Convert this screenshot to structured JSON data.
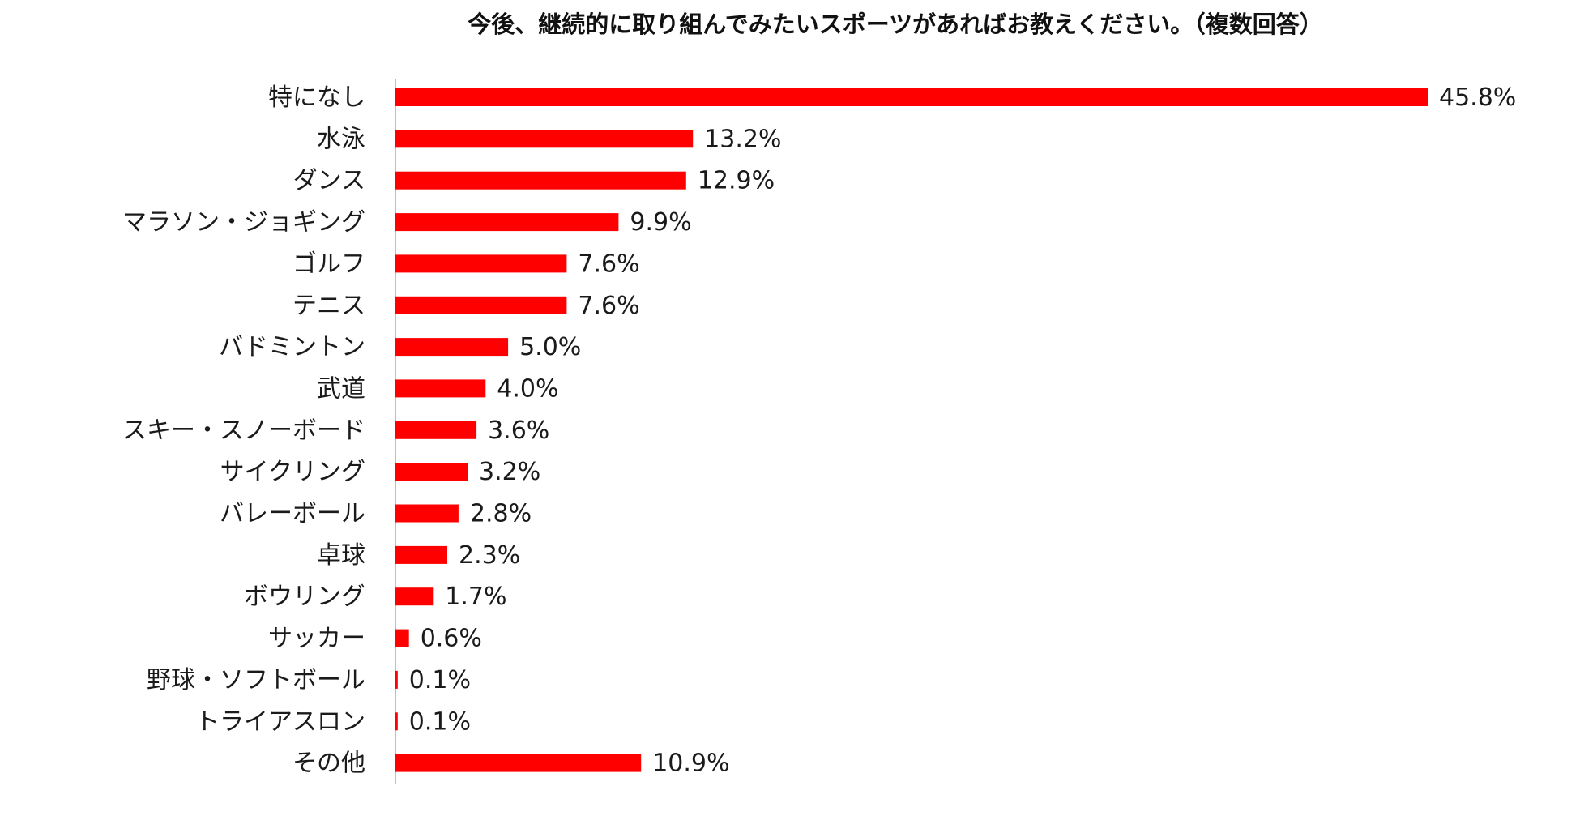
{
  "chart_data": {
    "type": "bar",
    "orientation": "horizontal",
    "title": "今後、継続的に取り組んでみたいスポーツがあればお教えください。（複数回答）",
    "categories": [
      "特になし",
      "水泳",
      "ダンス",
      "マラソン・ジョギング",
      "ゴルフ",
      "テニス",
      "バドミントン",
      "武道",
      "スキー・スノーボード",
      "サイクリング",
      "バレーボール",
      "卓球",
      "ボウリング",
      "サッカー",
      "野球・ソフトボール",
      "トライアスロン",
      "その他"
    ],
    "values": [
      45.8,
      13.2,
      12.9,
      9.9,
      7.6,
      7.6,
      5.0,
      4.0,
      3.6,
      3.2,
      2.8,
      2.3,
      1.7,
      0.6,
      0.1,
      0.1,
      10.9
    ],
    "value_labels": [
      "45.8%",
      "13.2%",
      "12.9%",
      "9.9%",
      "7.6%",
      "7.6%",
      "5.0%",
      "4.0%",
      "3.6%",
      "3.2%",
      "2.8%",
      "2.3%",
      "1.7%",
      "0.6%",
      "0.1%",
      "0.1%",
      "10.9%"
    ],
    "xlim": [
      0,
      45.8
    ],
    "bar_color": "#ff0000",
    "grid": false,
    "legend": "none"
  }
}
